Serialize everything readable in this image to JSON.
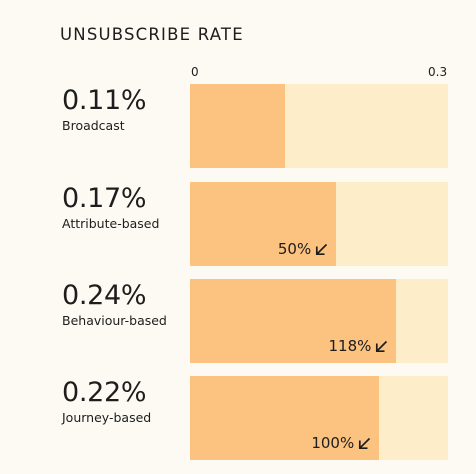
{
  "chart_data": {
    "type": "bar",
    "orientation": "horizontal",
    "title": "UNSUBSCRIBE RATE",
    "xlim": [
      0,
      0.3
    ],
    "x_ticks": [
      "0",
      "0.3"
    ],
    "grid": false,
    "colors": {
      "fill": "#fcc280",
      "track": "#feedc9",
      "text": "#1d1d1d"
    },
    "categories": [
      "Broadcast",
      "Attribute-based",
      "Behaviour-based",
      "Journey-based"
    ],
    "values": [
      0.11,
      0.17,
      0.24,
      0.22
    ],
    "value_labels": [
      "0.11%",
      "0.17%",
      "0.24%",
      "0.22%"
    ],
    "change_labels": [
      "",
      "50%",
      "118%",
      "100%"
    ],
    "change_icon": "arrow-down-left-icon"
  }
}
